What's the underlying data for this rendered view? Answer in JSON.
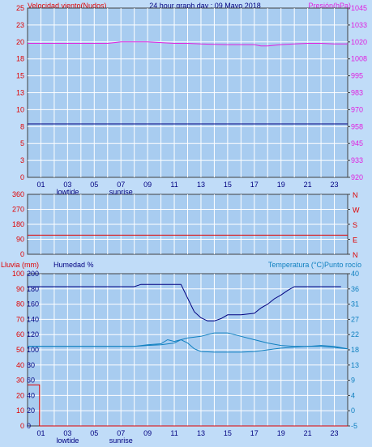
{
  "title": "24 hour graph day : 09 Mayo 2018",
  "top_left_label": "Velocidad viento(Nudos)",
  "top_right_label": "Presión(hPa)",
  "wind_dir_right_labels": [
    "N",
    "W",
    "S",
    "E",
    "N"
  ],
  "bottom_left_label": "Lluvia (mm)",
  "bottom_left_label2": "Humedad %",
  "bottom_right_label": "Temperatura (°C)Punto rocío",
  "x_tick_labels": [
    "01",
    "03",
    "05",
    "07",
    "09",
    "11",
    "13",
    "15",
    "17",
    "19",
    "21",
    "23"
  ],
  "x_sub_labels": [
    {
      "text": "lowtide",
      "at": "03"
    },
    {
      "text": "sunrise",
      "at": "07"
    }
  ],
  "colors": {
    "background": "#c0dcf8",
    "plot_bg": "#a8ccf0",
    "grid": "#ffffff",
    "wind": "#000080",
    "pressure": "#e020e0",
    "wind_dir": "#e00000",
    "humidity": "#000080",
    "temperature": "#1080c0",
    "dewpoint": "#1080c0",
    "rain": "#e00000"
  },
  "chart_data": [
    {
      "type": "line",
      "name": "wind-pressure",
      "left_ticks": [
        "25",
        "23",
        "20",
        "18",
        "15",
        "13",
        "10",
        "8",
        "5",
        "3",
        "0"
      ],
      "right_ticks": [
        "1045",
        "1033",
        "1020",
        "1008",
        "995",
        "983",
        "970",
        "958",
        "945",
        "933",
        "920"
      ],
      "ylim_left": [
        0,
        25
      ],
      "ylim_right": [
        920,
        1045
      ],
      "xlim": [
        0,
        24
      ],
      "series": [
        {
          "id": "wind",
          "axis": "left",
          "x": [
            0,
            24
          ],
          "y": [
            7.9,
            7.9
          ]
        },
        {
          "id": "pressure",
          "axis": "right",
          "x": [
            0,
            3,
            6,
            7,
            9,
            10,
            11,
            12,
            13,
            15,
            17,
            17.5,
            18,
            19,
            20,
            21,
            22,
            23,
            24
          ],
          "y": [
            1019,
            1019,
            1019,
            1020,
            1020,
            1019.5,
            1019,
            1019,
            1018.5,
            1018,
            1018,
            1017,
            1017,
            1018,
            1018.5,
            1019,
            1019,
            1018.5,
            1018.5
          ]
        }
      ]
    },
    {
      "type": "line",
      "name": "wind-direction",
      "left_ticks": [
        "360",
        "270",
        "180",
        "90",
        "0"
      ],
      "ylim": [
        0,
        360
      ],
      "xlim": [
        0,
        24
      ],
      "series": [
        {
          "id": "wind_dir",
          "x": [
            0,
            24
          ],
          "y": [
            115,
            115
          ]
        }
      ]
    },
    {
      "type": "line",
      "name": "rain-humidity-temperature",
      "left_ticks": [
        "100",
        "90",
        "80",
        "70",
        "60",
        "50",
        "40",
        "30",
        "20",
        "10",
        "0"
      ],
      "left_ticks2": [
        "200",
        "180",
        "160",
        "140",
        "120",
        "100",
        "80",
        "60",
        "40",
        "20",
        "0"
      ],
      "right_ticks": [
        "40",
        "36",
        "31",
        "27",
        "22",
        "18",
        "13",
        "9",
        "4",
        "0",
        "-5"
      ],
      "ylim_rain": [
        0,
        100
      ],
      "ylim_humidity": [
        0,
        200
      ],
      "ylim_temp": [
        -5,
        40
      ],
      "xlim": [
        0,
        24
      ],
      "series": [
        {
          "id": "rain",
          "axis": "rain",
          "x": [
            0,
            0.9,
            0.9,
            24
          ],
          "y": [
            27,
            27,
            0,
            0
          ]
        },
        {
          "id": "humidity",
          "axis": "humidity",
          "x": [
            0,
            6,
            8,
            8.5,
            11.5,
            12,
            12.5,
            13,
            13.5,
            14,
            14.5,
            15,
            15.5,
            16,
            17,
            17.5,
            18,
            18.5,
            19,
            19.5,
            20,
            20.5,
            21,
            22,
            23.5
          ],
          "y": [
            183,
            183,
            183,
            186,
            186,
            168,
            150,
            142,
            138,
            138,
            141,
            146,
            146,
            146,
            148,
            155,
            160,
            167,
            172,
            178,
            183,
            183,
            183,
            183,
            183
          ]
        },
        {
          "id": "temperature",
          "axis": "temp",
          "x": [
            0,
            3,
            6,
            8,
            9,
            10,
            10.5,
            11,
            11.5,
            12,
            13,
            14,
            15,
            16,
            17,
            18,
            19,
            20,
            21,
            22,
            23,
            24
          ],
          "y": [
            18.5,
            18.5,
            18.5,
            18.5,
            19,
            19.3,
            20.5,
            20,
            20.5,
            21,
            21.5,
            22.5,
            22.5,
            21.5,
            20.5,
            19.5,
            18.8,
            18.5,
            18.5,
            18.5,
            18.2,
            17.8
          ]
        },
        {
          "id": "dewpoint",
          "axis": "temp",
          "x": [
            0,
            3,
            6,
            8,
            9,
            10,
            11,
            11.5,
            12,
            12.5,
            13,
            14,
            15,
            16,
            17,
            18,
            19,
            20,
            21,
            22,
            23,
            24
          ],
          "y": [
            18.5,
            18.5,
            18.5,
            18.5,
            18.8,
            19,
            19.5,
            20.5,
            19.5,
            17.8,
            17,
            16.8,
            16.8,
            16.8,
            17,
            17.5,
            18,
            18.3,
            18.5,
            18.8,
            18.5,
            17.8
          ]
        }
      ]
    }
  ]
}
